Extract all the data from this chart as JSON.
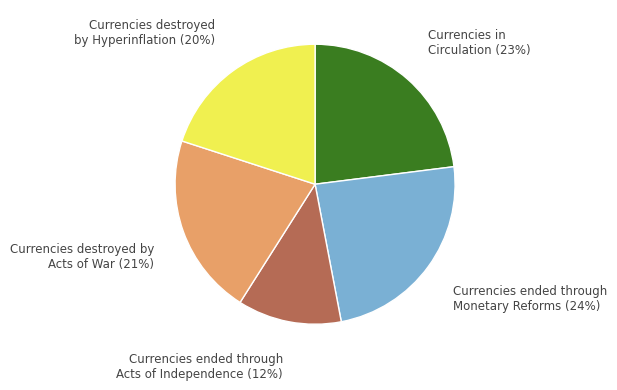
{
  "slices": [
    {
      "label": "Currencies in\nCirculation (23%)",
      "value": 23,
      "color": "#3a7d20"
    },
    {
      "label": "Currencies ended through\nMonetary Reforms (24%)",
      "value": 24,
      "color": "#7ab0d4"
    },
    {
      "label": "Currencies ended through\nActs of Independence (12%)",
      "value": 12,
      "color": "#b56b55"
    },
    {
      "label": "Currencies destroyed by\nActs of War (21%)",
      "value": 21,
      "color": "#e8a068"
    },
    {
      "label": "Currencies destroyed\nby Hyperinflation (20%)",
      "value": 20,
      "color": "#f0f050"
    }
  ],
  "background_color": "#ffffff",
  "label_fontsize": 8.5,
  "startangle": 90
}
